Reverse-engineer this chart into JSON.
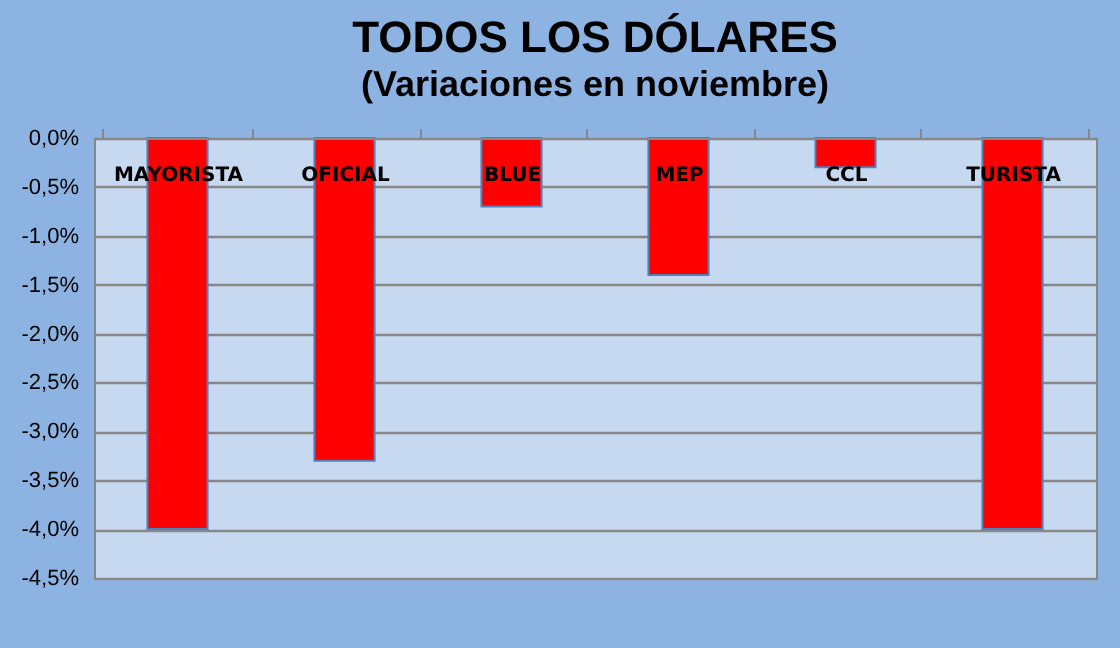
{
  "chart_data": {
    "type": "bar",
    "title": "TODOS LOS DÓLARES",
    "subtitle": "(Variaciones  en noviembre)",
    "categories": [
      "MAYORISTA",
      "OFICIAL",
      "BLUE",
      "MEP",
      "CCL",
      "TURISTA"
    ],
    "values": [
      -4.0,
      -3.3,
      -0.7,
      -1.4,
      -0.3,
      -4.0
    ],
    "color": "#ff0000",
    "ylim": [
      -4.5,
      0
    ],
    "yticks": [
      {
        "value": 0,
        "label": "0,0%"
      },
      {
        "value": -0.5,
        "label": "-0,5%"
      },
      {
        "value": -1,
        "label": "-1,0%"
      },
      {
        "value": -1.5,
        "label": "-1,5%"
      },
      {
        "value": -2,
        "label": "-2,0%"
      },
      {
        "value": -2.5,
        "label": "-2,5%"
      },
      {
        "value": -3,
        "label": "-3,0%"
      },
      {
        "value": -3.5,
        "label": "-3,5%"
      },
      {
        "value": -4,
        "label": "-4,0%"
      },
      {
        "value": -4.5,
        "label": "-4,5%"
      }
    ],
    "grid": "y"
  }
}
